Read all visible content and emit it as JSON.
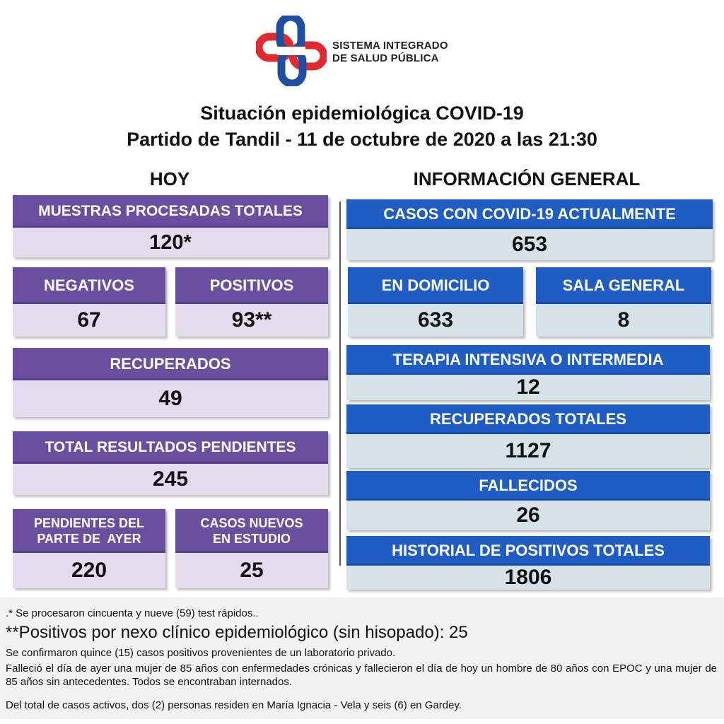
{
  "header": {
    "org_line1": "SISTEMA INTEGRADO",
    "org_line2": "DE SALUD PÚBLICA",
    "title_line1": "Situación epidemiológica COVID-19",
    "title_line2": "Partido de Tandil - 11 de octubre de 2020 a las 21:30"
  },
  "colors": {
    "purple_header": "#6a4fa0",
    "purple_value": "#e3dcee",
    "blue_header": "#1f5cc4",
    "blue_value": "#d5e3e8",
    "logo_red": "#e02a2f",
    "logo_blue": "#1f4ea3"
  },
  "hoy": {
    "heading": "HOY",
    "muestras": {
      "label": "MUESTRAS PROCESADAS TOTALES",
      "value": "120*"
    },
    "negativos": {
      "label": "NEGATIVOS",
      "value": "67"
    },
    "positivos": {
      "label": "POSITIVOS",
      "value": "93**"
    },
    "recuperados": {
      "label": "RECUPERADOS",
      "value": "49"
    },
    "pendientes": {
      "label": "TOTAL RESULTADOS PENDIENTES",
      "value": "245"
    },
    "pendientes_ayer": {
      "label_line1": "PENDIENTES DEL",
      "label_line2": "PARTE DE  AYER",
      "value": "220"
    },
    "casos_nuevos": {
      "label_line1": "CASOS NUEVOS",
      "label_line2": "EN ESTUDIO",
      "value": "25"
    }
  },
  "general": {
    "heading": "INFORMACIÓN GENERAL",
    "activos": {
      "label": "CASOS CON COVID-19 ACTUALMENTE",
      "value": "653"
    },
    "domicilio": {
      "label": "EN DOMICILIO",
      "value": "633"
    },
    "sala": {
      "label": "SALA GENERAL",
      "value": "8"
    },
    "terapia": {
      "label": "TERAPIA INTENSIVA O INTERMEDIA",
      "value": "12"
    },
    "recuperados_totales": {
      "label": "RECUPERADOS TOTALES",
      "value": "1127"
    },
    "fallecidos": {
      "label": "FALLECIDOS",
      "value": "26"
    },
    "historial": {
      "label": "HISTORIAL DE POSITIVOS TOTALES",
      "value": "1806"
    }
  },
  "notes": {
    "n1": ".* Se procesaron cincuenta y nueve (59) test rápidos..",
    "n2": "**Positivos por nexo clínico epidemiológico (sin hisopado): 25",
    "n3": "Se confirmaron quince (15) casos positivos provenientes de un laboratorio privado.",
    "n4": "Falleció el día de ayer una mujer de 85 años con enfermedades crónicas y fallecieron el día de hoy un hombre de 80 años con EPOC y una mujer de 85 años sin antecedentes. Todos se encontraban internados.",
    "n5": "Del total de casos activos, dos (2) personas residen en María Ignacia - Vela y seis (6) en Gardey."
  }
}
